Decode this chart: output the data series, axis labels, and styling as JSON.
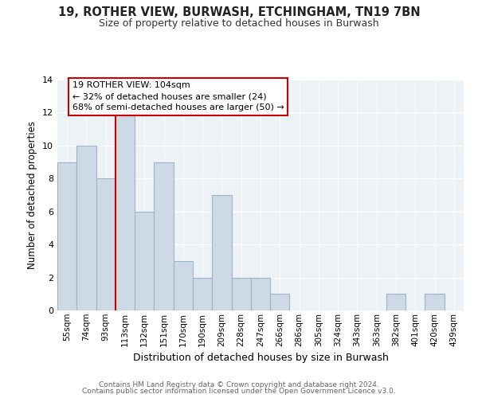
{
  "title1": "19, ROTHER VIEW, BURWASH, ETCHINGHAM, TN19 7BN",
  "title2": "Size of property relative to detached houses in Burwash",
  "xlabel": "Distribution of detached houses by size in Burwash",
  "ylabel": "Number of detached properties",
  "bar_labels": [
    "55sqm",
    "74sqm",
    "93sqm",
    "113sqm",
    "132sqm",
    "151sqm",
    "170sqm",
    "190sqm",
    "209sqm",
    "228sqm",
    "247sqm",
    "266sqm",
    "286sqm",
    "305sqm",
    "324sqm",
    "343sqm",
    "363sqm",
    "382sqm",
    "401sqm",
    "420sqm",
    "439sqm"
  ],
  "bar_values": [
    9,
    10,
    8,
    12,
    6,
    9,
    3,
    2,
    7,
    2,
    2,
    1,
    0,
    0,
    0,
    0,
    0,
    1,
    0,
    1,
    0
  ],
  "bar_color": "#cdd9e5",
  "bar_edge_color": "#9ab4cc",
  "ylim": [
    0,
    14
  ],
  "yticks": [
    0,
    2,
    4,
    6,
    8,
    10,
    12,
    14
  ],
  "vline_color": "#cc0000",
  "annotation_text": "19 ROTHER VIEW: 104sqm\n← 32% of detached houses are smaller (24)\n68% of semi-detached houses are larger (50) →",
  "annotation_box_color": "#ffffff",
  "annotation_box_edge": "#cc0000",
  "bg_color": "#edf2f7",
  "footer1": "Contains HM Land Registry data © Crown copyright and database right 2024.",
  "footer2": "Contains public sector information licensed under the Open Government Licence v3.0."
}
